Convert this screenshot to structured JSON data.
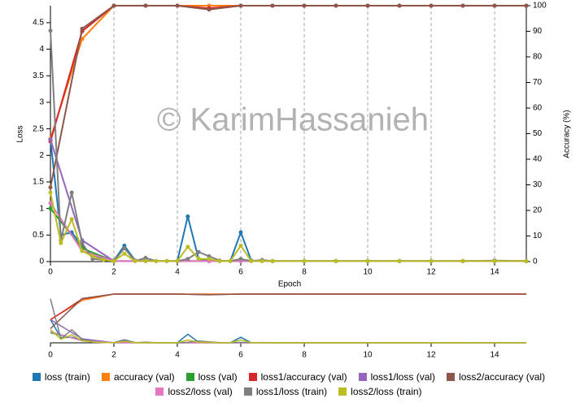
{
  "chart_data": {
    "type": "line",
    "watermark": "© KarimHassanieh",
    "xlabel": "Epoch",
    "ylabel": "Loss",
    "y2label": "Accuracy (%)",
    "xlim": [
      0,
      15
    ],
    "xticks": [
      0,
      2,
      4,
      6,
      8,
      10,
      12,
      14
    ],
    "ylim": [
      0,
      4.82
    ],
    "yticks": [
      0,
      0.5,
      1,
      1.5,
      2,
      2.5,
      3,
      3.5,
      4,
      4.5
    ],
    "y2lim": [
      0,
      100
    ],
    "y2ticks": [
      0,
      10,
      20,
      30,
      40,
      50,
      60,
      70,
      80,
      90,
      100
    ],
    "grid": true,
    "series": [
      {
        "name": "loss (train)",
        "color": "#1f77b4",
        "x": [
          0,
          0.33,
          0.67,
          1,
          1.33,
          1.67,
          2,
          2.33,
          2.67,
          3,
          3.33,
          3.67,
          4,
          4.33,
          4.67,
          5,
          5.33,
          5.67,
          6,
          6.33,
          6.67,
          7,
          8,
          9,
          10,
          11,
          12,
          13,
          14,
          15
        ],
        "values": [
          2.3,
          0.5,
          0.55,
          0.3,
          0.1,
          0.05,
          0.02,
          0.3,
          0.02,
          0.02,
          0.01,
          0.01,
          0.01,
          0.85,
          0.05,
          0.02,
          0.01,
          0.01,
          0.55,
          0.02,
          0.01,
          0.01,
          0.01,
          0.01,
          0.01,
          0.01,
          0.01,
          0.01,
          0.01,
          0.01
        ]
      },
      {
        "name": "accuracy (val)",
        "color": "#ff7f0e",
        "axis": "y2",
        "x": [
          0,
          1,
          2,
          3,
          4,
          5,
          6,
          7,
          8,
          9,
          10,
          11,
          12,
          13,
          14,
          15
        ],
        "values": [
          48,
          87,
          100,
          100,
          100,
          100,
          100,
          100,
          100,
          100,
          100,
          100,
          100,
          100,
          100,
          100
        ]
      },
      {
        "name": "loss (val)",
        "color": "#2ca02c",
        "x": [
          0,
          1,
          2,
          3,
          4,
          5,
          6,
          7,
          8,
          9,
          10,
          11,
          12,
          13,
          14,
          15
        ],
        "values": [
          1.0,
          0.25,
          0.01,
          0.01,
          0.01,
          0.01,
          0.01,
          0.01,
          0.01,
          0.01,
          0.01,
          0.01,
          0.01,
          0.01,
          0.01,
          0.01
        ]
      },
      {
        "name": "loss1/accuracy (val)",
        "color": "#d62728",
        "axis": "y2",
        "x": [
          0,
          1,
          2,
          3,
          4,
          5,
          6,
          7,
          8,
          9,
          10,
          11,
          12,
          13,
          14,
          15
        ],
        "values": [
          47,
          90,
          100,
          100,
          100,
          99,
          100,
          100,
          100,
          100,
          100,
          100,
          100,
          100,
          100,
          100
        ]
      },
      {
        "name": "loss1/loss (val)",
        "color": "#9467bd",
        "x": [
          0,
          1,
          2,
          3,
          4,
          5,
          6,
          7,
          8,
          9,
          10,
          11,
          12,
          13,
          14,
          15
        ],
        "values": [
          2.3,
          0.4,
          0.01,
          0.01,
          0.01,
          0.01,
          0.01,
          0.01,
          0.01,
          0.01,
          0.01,
          0.01,
          0.01,
          0.01,
          0.01,
          0.01
        ]
      },
      {
        "name": "loss2/accuracy (val)",
        "color": "#8c564b",
        "axis": "y2",
        "x": [
          0,
          1,
          2,
          3,
          4,
          5,
          6,
          7,
          8,
          9,
          10,
          11,
          12,
          13,
          14,
          15
        ],
        "values": [
          29,
          91,
          100,
          100,
          100,
          98.5,
          100,
          100,
          100,
          100,
          100,
          100,
          100,
          100,
          100,
          100
        ]
      },
      {
        "name": "loss2/loss (val)",
        "color": "#e377c2",
        "x": [
          0,
          1,
          2,
          3,
          4,
          5,
          6,
          7,
          8,
          9,
          10,
          11,
          12,
          13,
          14,
          15
        ],
        "values": [
          1.1,
          0.2,
          0.01,
          0.01,
          0.01,
          0.01,
          0.01,
          0.01,
          0.01,
          0.01,
          0.01,
          0.01,
          0.01,
          0.01,
          0.01,
          0.01
        ]
      },
      {
        "name": "loss1/loss (train)",
        "color": "#7f7f7f",
        "x": [
          0,
          0.33,
          0.67,
          1,
          1.33,
          1.67,
          2,
          2.33,
          2.67,
          3,
          3.33,
          3.67,
          4,
          4.33,
          4.67,
          5,
          5.33,
          5.67,
          6,
          6.33,
          6.67,
          7,
          8,
          9,
          10,
          11,
          12,
          13,
          14,
          15
        ],
        "values": [
          4.35,
          0.4,
          1.3,
          0.35,
          0.05,
          0.03,
          0.01,
          0.25,
          0.01,
          0.07,
          0.01,
          0.01,
          0.01,
          0.05,
          0.18,
          0.1,
          0.02,
          0.01,
          0.05,
          0.01,
          0.03,
          0.01,
          0.01,
          0.01,
          0.01,
          0.01,
          0.01,
          0.01,
          0.02,
          0.01
        ]
      },
      {
        "name": "loss2/loss (train)",
        "color": "#bcbd22",
        "x": [
          0,
          0.33,
          0.67,
          1,
          1.33,
          1.67,
          2,
          2.33,
          2.67,
          3,
          3.33,
          3.67,
          4,
          4.33,
          4.67,
          5,
          5.33,
          5.67,
          6,
          6.33,
          6.67,
          7,
          8,
          9,
          10,
          11,
          12,
          13,
          14,
          15
        ],
        "values": [
          1.3,
          0.35,
          0.8,
          0.2,
          0.1,
          0.03,
          0.01,
          0.15,
          0.01,
          0.01,
          0.01,
          0.01,
          0.01,
          0.28,
          0.05,
          0.05,
          0.01,
          0.01,
          0.3,
          0.01,
          0.01,
          0.01,
          0.01,
          0.01,
          0.01,
          0.01,
          0.01,
          0.01,
          0.01,
          0.01
        ]
      }
    ]
  }
}
